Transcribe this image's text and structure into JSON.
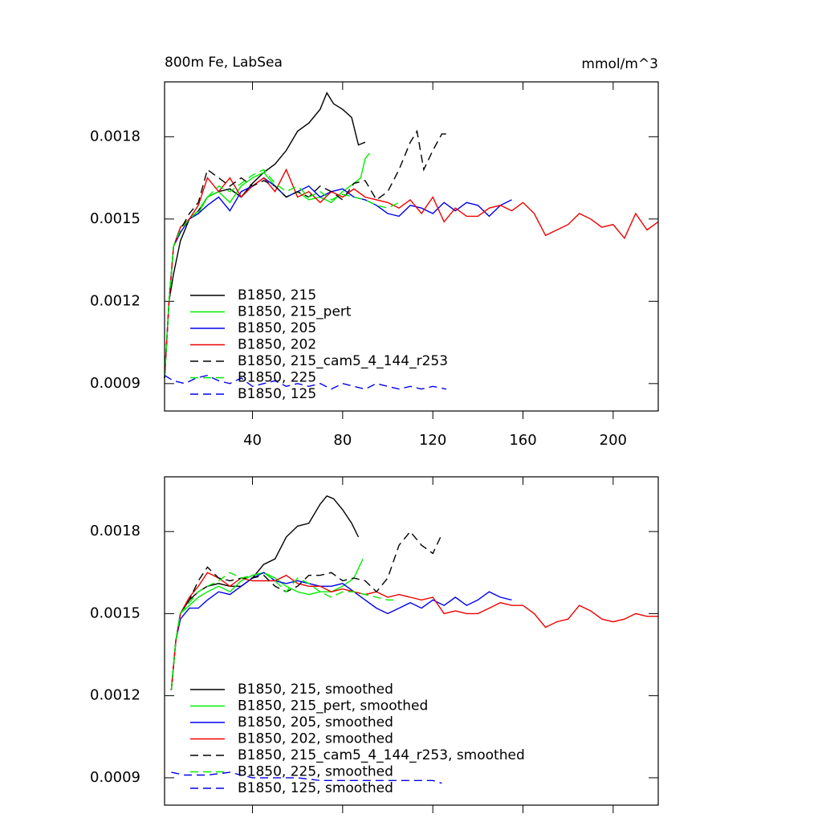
{
  "chart_data": [
    {
      "type": "line",
      "title": "800m Fe, LabSea",
      "right_title": "mmol/m^3",
      "xlim": [
        1,
        220
      ],
      "xticks": [
        40,
        80,
        120,
        160,
        200
      ],
      "xtick_labels": true,
      "ylim": [
        0.0008,
        0.002
      ],
      "yticks": [
        0.0009,
        0.0012,
        0.0015,
        0.0018
      ],
      "legend": "lower left",
      "series": [
        {
          "name": "B1850, 215",
          "color": "#000000",
          "dashed": false,
          "x": [
            1,
            3,
            5,
            8,
            12,
            16,
            20,
            25,
            30,
            35,
            40,
            45,
            50,
            55,
            60,
            65,
            70,
            73,
            76,
            80,
            84,
            87,
            90
          ],
          "values": [
            0.00092,
            0.0012,
            0.0013,
            0.00142,
            0.0015,
            0.00153,
            0.00158,
            0.0016,
            0.00161,
            0.00158,
            0.00163,
            0.00167,
            0.0017,
            0.00175,
            0.00182,
            0.00185,
            0.0019,
            0.00196,
            0.00192,
            0.0019,
            0.00187,
            0.00177,
            0.00178
          ]
        },
        {
          "name": "B1850, 215_pert",
          "color": "#00ee00",
          "dashed": false,
          "x": [
            1,
            3,
            5,
            8,
            12,
            16,
            20,
            25,
            30,
            35,
            40,
            45,
            50,
            55,
            60,
            65,
            70,
            75,
            80,
            85,
            88,
            90,
            92
          ],
          "values": [
            0.00092,
            0.0012,
            0.0014,
            0.00147,
            0.0015,
            0.00152,
            0.00158,
            0.0016,
            0.00156,
            0.00162,
            0.00165,
            0.00167,
            0.00162,
            0.00158,
            0.0016,
            0.00157,
            0.00158,
            0.00156,
            0.0016,
            0.00163,
            0.00165,
            0.00172,
            0.00174
          ]
        },
        {
          "name": "B1850, 205",
          "color": "#0000ee",
          "dashed": false,
          "x": [
            1,
            3,
            5,
            8,
            12,
            16,
            20,
            25,
            30,
            35,
            40,
            45,
            50,
            55,
            60,
            65,
            70,
            75,
            80,
            85,
            90,
            95,
            100,
            105,
            110,
            115,
            120,
            125,
            130,
            135,
            140,
            145,
            150,
            155
          ],
          "values": [
            0.00092,
            0.0012,
            0.0014,
            0.00145,
            0.0015,
            0.00152,
            0.00155,
            0.00158,
            0.00153,
            0.0016,
            0.00162,
            0.00165,
            0.00162,
            0.00158,
            0.0016,
            0.00162,
            0.00158,
            0.0016,
            0.00161,
            0.00158,
            0.00157,
            0.00155,
            0.00152,
            0.00151,
            0.00155,
            0.00154,
            0.00152,
            0.00156,
            0.00153,
            0.00156,
            0.00155,
            0.00151,
            0.00155,
            0.00157
          ]
        },
        {
          "name": "B1850, 202",
          "color": "#ee0000",
          "dashed": false,
          "x": [
            1,
            3,
            5,
            8,
            12,
            16,
            20,
            25,
            30,
            35,
            40,
            45,
            50,
            55,
            60,
            65,
            70,
            75,
            80,
            85,
            90,
            95,
            100,
            105,
            110,
            115,
            120,
            125,
            130,
            135,
            140,
            145,
            150,
            155,
            160,
            165,
            170,
            175,
            180,
            185,
            190,
            195,
            200,
            205,
            210,
            215,
            220
          ],
          "values": [
            0.00092,
            0.0012,
            0.0014,
            0.00147,
            0.0015,
            0.00155,
            0.00165,
            0.0016,
            0.00165,
            0.00158,
            0.00162,
            0.00165,
            0.0016,
            0.00168,
            0.00158,
            0.0016,
            0.00156,
            0.0016,
            0.00158,
            0.00161,
            0.00158,
            0.00157,
            0.00156,
            0.00154,
            0.00157,
            0.00152,
            0.00158,
            0.00149,
            0.00154,
            0.00151,
            0.00151,
            0.00154,
            0.00155,
            0.00153,
            0.00156,
            0.00152,
            0.00144,
            0.00146,
            0.00148,
            0.00152,
            0.0015,
            0.00147,
            0.00148,
            0.00143,
            0.00152,
            0.00146,
            0.00149
          ]
        },
        {
          "name": "B1850, 215_cam5_4_144_r253",
          "color": "#000000",
          "dashed": true,
          "x": [
            1,
            3,
            5,
            8,
            12,
            16,
            20,
            25,
            30,
            35,
            40,
            45,
            50,
            55,
            60,
            65,
            70,
            75,
            80,
            85,
            90,
            95,
            100,
            105,
            110,
            113,
            116,
            120,
            124,
            126
          ],
          "values": [
            0.00092,
            0.0012,
            0.0014,
            0.00146,
            0.00152,
            0.00156,
            0.00168,
            0.00165,
            0.00162,
            0.00165,
            0.00162,
            0.00164,
            0.00162,
            0.00158,
            0.0016,
            0.00158,
            0.00162,
            0.0016,
            0.00157,
            0.00163,
            0.00164,
            0.00157,
            0.0016,
            0.00168,
            0.00178,
            0.00182,
            0.00168,
            0.00175,
            0.00181,
            0.00181
          ]
        },
        {
          "name": "B1850, 225",
          "color": "#00ee00",
          "dashed": true,
          "x": [
            1,
            3,
            5,
            8,
            12,
            16,
            20,
            25,
            30,
            35,
            40,
            45,
            50,
            55,
            60,
            65,
            70,
            75,
            80,
            85,
            90,
            95,
            100,
            105
          ],
          "values": [
            0.00092,
            0.0012,
            0.0014,
            0.00146,
            0.0015,
            0.00153,
            0.00158,
            0.00162,
            0.0016,
            0.00163,
            0.00166,
            0.00168,
            0.00163,
            0.0016,
            0.00162,
            0.00158,
            0.0016,
            0.00157,
            0.00159,
            0.00158,
            0.00157,
            0.00155,
            0.00154,
            0.00156
          ]
        },
        {
          "name": "B1850, 125",
          "color": "#0000ee",
          "dashed": true,
          "x": [
            1,
            5,
            10,
            15,
            20,
            25,
            30,
            35,
            40,
            45,
            50,
            55,
            60,
            65,
            70,
            75,
            80,
            85,
            90,
            95,
            100,
            105,
            110,
            115,
            120,
            126
          ],
          "values": [
            0.00093,
            0.00091,
            0.0009,
            0.00092,
            0.00093,
            0.00091,
            0.0009,
            0.00092,
            0.00089,
            0.0009,
            0.00091,
            0.00089,
            0.0009,
            0.00089,
            0.0009,
            0.00088,
            0.0009,
            0.00089,
            0.00088,
            0.0009,
            0.00089,
            0.00088,
            0.00089,
            0.00088,
            0.00089,
            0.00088
          ]
        }
      ]
    },
    {
      "type": "line",
      "xlim": [
        1,
        220
      ],
      "xticks": [
        40,
        80,
        120,
        160,
        200
      ],
      "xtick_labels": false,
      "ylim": [
        0.0008,
        0.002
      ],
      "yticks": [
        0.0009,
        0.0012,
        0.0015,
        0.0018
      ],
      "legend": "lower left",
      "series": [
        {
          "name": "B1850, 215, smoothed",
          "color": "#000000",
          "dashed": false,
          "x": [
            4,
            6,
            8,
            12,
            16,
            20,
            25,
            30,
            35,
            40,
            45,
            50,
            55,
            60,
            65,
            70,
            73,
            76,
            80,
            84,
            87
          ],
          "values": [
            0.00122,
            0.0014,
            0.0015,
            0.00155,
            0.00158,
            0.0016,
            0.00161,
            0.0016,
            0.0016,
            0.00163,
            0.00168,
            0.0017,
            0.00178,
            0.00182,
            0.00183,
            0.0019,
            0.00193,
            0.00192,
            0.00188,
            0.00183,
            0.00178
          ]
        },
        {
          "name": "B1850, 215_pert, smoothed",
          "color": "#00ee00",
          "dashed": false,
          "x": [
            4,
            6,
            8,
            12,
            16,
            20,
            25,
            30,
            35,
            40,
            45,
            50,
            55,
            60,
            65,
            70,
            75,
            80,
            85,
            89
          ],
          "values": [
            0.00122,
            0.0014,
            0.0015,
            0.00153,
            0.00156,
            0.00158,
            0.0016,
            0.00158,
            0.00162,
            0.00164,
            0.00165,
            0.00163,
            0.0016,
            0.00158,
            0.00157,
            0.00158,
            0.00158,
            0.0016,
            0.00163,
            0.0017
          ]
        },
        {
          "name": "B1850, 205, smoothed",
          "color": "#0000ee",
          "dashed": false,
          "x": [
            4,
            6,
            8,
            12,
            16,
            20,
            25,
            30,
            35,
            40,
            45,
            50,
            55,
            60,
            65,
            70,
            75,
            80,
            85,
            90,
            95,
            100,
            105,
            110,
            115,
            120,
            125,
            130,
            135,
            140,
            145,
            150,
            155
          ],
          "values": [
            0.00122,
            0.0014,
            0.00148,
            0.00152,
            0.00152,
            0.00155,
            0.00158,
            0.00157,
            0.0016,
            0.00163,
            0.00165,
            0.00162,
            0.00161,
            0.00162,
            0.00161,
            0.0016,
            0.0016,
            0.00161,
            0.00158,
            0.00155,
            0.00152,
            0.0015,
            0.00152,
            0.00154,
            0.00152,
            0.00155,
            0.00153,
            0.00156,
            0.00153,
            0.00155,
            0.00158,
            0.00156,
            0.00155
          ]
        },
        {
          "name": "B1850, 202, smoothed",
          "color": "#ee0000",
          "dashed": false,
          "x": [
            4,
            6,
            8,
            12,
            16,
            20,
            25,
            30,
            35,
            40,
            45,
            50,
            55,
            60,
            65,
            70,
            75,
            80,
            85,
            90,
            95,
            100,
            105,
            110,
            115,
            120,
            125,
            130,
            135,
            140,
            145,
            150,
            155,
            160,
            165,
            170,
            175,
            180,
            185,
            190,
            195,
            200,
            205,
            210,
            215,
            220
          ],
          "values": [
            0.00122,
            0.0014,
            0.0015,
            0.00156,
            0.0016,
            0.00165,
            0.00163,
            0.0016,
            0.00163,
            0.00162,
            0.00162,
            0.00162,
            0.00164,
            0.00161,
            0.0016,
            0.0016,
            0.00158,
            0.00159,
            0.00158,
            0.00157,
            0.00158,
            0.00156,
            0.00157,
            0.00156,
            0.00155,
            0.00156,
            0.0015,
            0.00151,
            0.0015,
            0.0015,
            0.00152,
            0.00154,
            0.00153,
            0.00153,
            0.0015,
            0.00145,
            0.00147,
            0.00148,
            0.00153,
            0.00151,
            0.00148,
            0.00147,
            0.00148,
            0.0015,
            0.00149,
            0.00149
          ]
        },
        {
          "name": "B1850, 215_cam5_4_144_r253, smoothed",
          "color": "#000000",
          "dashed": true,
          "x": [
            4,
            6,
            8,
            12,
            16,
            20,
            25,
            30,
            35,
            40,
            45,
            50,
            55,
            60,
            65,
            70,
            75,
            80,
            85,
            90,
            95,
            100,
            105,
            110,
            115,
            120,
            124
          ],
          "values": [
            0.00122,
            0.0014,
            0.0015,
            0.00155,
            0.00162,
            0.00167,
            0.00163,
            0.00162,
            0.00163,
            0.00163,
            0.00164,
            0.0016,
            0.00158,
            0.0016,
            0.00164,
            0.00164,
            0.00165,
            0.00162,
            0.00163,
            0.00162,
            0.00158,
            0.00163,
            0.00175,
            0.0018,
            0.00175,
            0.00172,
            0.00179
          ]
        },
        {
          "name": "B1850, 225, smoothed",
          "color": "#00ee00",
          "dashed": true,
          "x": [
            4,
            6,
            8,
            12,
            16,
            20,
            25,
            30,
            35,
            40,
            45,
            50,
            55,
            60,
            65,
            70,
            75,
            80,
            85,
            90,
            95,
            100,
            104
          ],
          "values": [
            0.00122,
            0.0014,
            0.0015,
            0.00154,
            0.00158,
            0.0016,
            0.00162,
            0.00165,
            0.00163,
            0.00164,
            0.00165,
            0.00162,
            0.00158,
            0.00163,
            0.00161,
            0.00158,
            0.00156,
            0.00158,
            0.00158,
            0.00157,
            0.00156,
            0.00155,
            0.00155
          ]
        },
        {
          "name": "B1850, 125, smoothed",
          "color": "#0000ee",
          "dashed": true,
          "x": [
            4,
            10,
            20,
            30,
            40,
            50,
            60,
            70,
            80,
            90,
            100,
            110,
            120,
            124
          ],
          "values": [
            0.00092,
            0.00091,
            0.00091,
            0.00092,
            0.0009,
            0.0009,
            0.0009,
            0.00089,
            0.00089,
            0.00089,
            0.00089,
            0.00089,
            0.00089,
            0.00088
          ]
        }
      ]
    }
  ]
}
